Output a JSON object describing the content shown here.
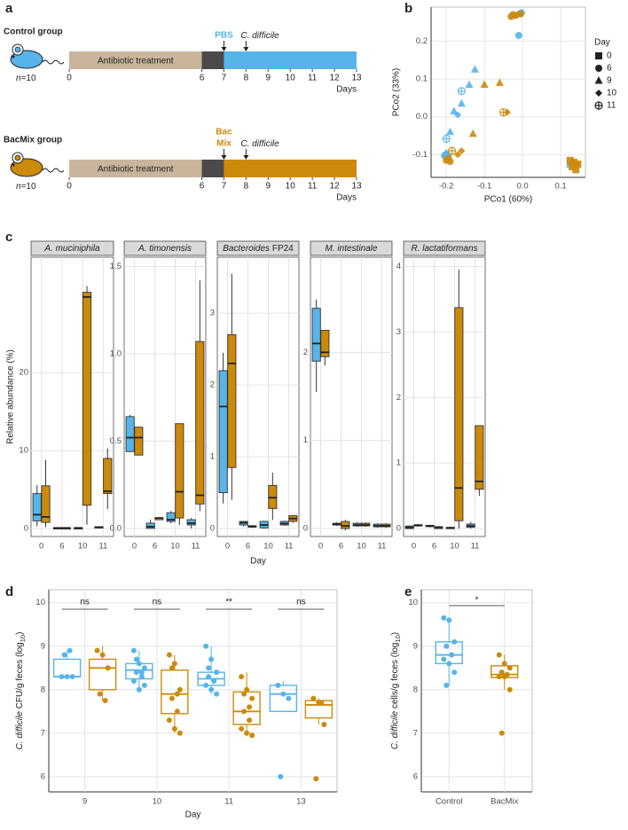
{
  "panel_labels": [
    "a",
    "b",
    "c",
    "d",
    "e"
  ],
  "timeline": {
    "xlim": [
      0,
      13
    ],
    "ticks": [
      0,
      6,
      7,
      8,
      9,
      10,
      11,
      12,
      13
    ],
    "xlabel": "Days",
    "segments": [
      {
        "start": 0,
        "end": 6,
        "color": "#c9b59b",
        "label": "Antibiotic treatment"
      },
      {
        "start": 6,
        "end": 7,
        "color": "#4a4a4a"
      },
      {
        "start": 7,
        "end": 13
      }
    ],
    "arrows": [
      7,
      8
    ],
    "challenge": [
      {
        "text": "C. difficile",
        "italic": true
      }
    ],
    "groups": [
      {
        "title": "Control group",
        "color": "#56b4e9",
        "n": [
          {
            "text": "n",
            "italic": true
          },
          {
            "text": "=10"
          }
        ],
        "agent": [
          "PBS"
        ]
      },
      {
        "title": "BacMix group",
        "color": "#cc8a0a",
        "n": [
          {
            "text": "n",
            "italic": true
          },
          {
            "text": "=10"
          }
        ],
        "agent": [
          "Bac",
          "Mix"
        ]
      }
    ]
  },
  "chart_data": [
    {
      "type": "scatter",
      "xlabel": "PCo1 (60%)",
      "ylabel": "PCo2 (33%)",
      "xlim": [
        -0.24,
        0.165
      ],
      "ylim": [
        -0.16,
        0.29
      ],
      "xticks": [
        -0.2,
        -0.1,
        {
          "value": 0,
          "label": "0.0"
        },
        0.1
      ],
      "yticks": [
        -0.1,
        {
          "value": 0,
          "label": "0.0"
        },
        0.1,
        0.2
      ],
      "grid": true,
      "legend": {
        "title": "Day",
        "labels": [
          0,
          6,
          9,
          10,
          11
        ],
        "shapes": [
          "square",
          "circle",
          "triangle",
          "diamond",
          "circle-plus"
        ],
        "position": "right"
      },
      "series": [
        {
          "color": "#56b4e9",
          "x": [
            0.125,
            -0.008,
            -0.003,
            -0.01,
            -0.2,
            -0.195,
            -0.205,
            -0.125,
            -0.14,
            -0.16,
            -0.18,
            -0.19,
            -0.17,
            -0.2,
            -0.16,
            -0.2
          ],
          "y": [
            -0.125,
            0.272,
            0.275,
            0.215,
            -0.1,
            -0.105,
            -0.103,
            0.125,
            0.085,
            0.035,
            0.015,
            -0.04,
            0.005,
            -0.095,
            0.068,
            -0.058
          ],
          "day": [
            0,
            6,
            6,
            6,
            6,
            6,
            6,
            9,
            9,
            9,
            9,
            9,
            10,
            10,
            11,
            11
          ]
        },
        {
          "color": "#cc8a0a",
          "x": [
            0.125,
            0.135,
            0.14,
            0.13,
            0.145,
            0.14,
            -0.025,
            -0.018,
            -0.03,
            -0.005,
            -0.2,
            -0.19,
            -0.195,
            -0.06,
            -0.1,
            -0.13,
            -0.04,
            -0.16,
            -0.17,
            -0.05,
            -0.185
          ],
          "y": [
            -0.115,
            -0.12,
            -0.128,
            -0.132,
            -0.125,
            -0.14,
            0.27,
            0.268,
            0.265,
            0.272,
            -0.115,
            -0.118,
            -0.11,
            0.09,
            0.085,
            -0.045,
            0.012,
            -0.09,
            -0.1,
            0.012,
            -0.09
          ],
          "day": [
            0,
            0,
            0,
            0,
            0,
            0,
            6,
            6,
            6,
            6,
            6,
            6,
            6,
            9,
            9,
            9,
            10,
            10,
            10,
            11,
            11
          ]
        }
      ]
    },
    {
      "type": "facet-box",
      "ylabel": "Relative abundance (%)",
      "xlabel": "Day",
      "categories": [
        "0",
        "6",
        "10",
        "11"
      ],
      "colors": [
        "#56b4e9",
        "#cc8a0a"
      ],
      "grid": true,
      "facets": [
        {
          "title": [
            {
              "text": "A. muciniphila",
              "italic": true
            }
          ],
          "ylim": [
            -1.0,
            34.8
          ],
          "yticks": [
            0,
            10,
            20
          ],
          "series": [
            [
              {
                "min": 0.3,
                "q1": 1.0,
                "median": 1.8,
                "q3": 4.5,
                "max": 5.6
              },
              {
                "min": 0.05,
                "q1": 0.08,
                "median": 0.1,
                "q3": 0.13,
                "max": 0.15
              },
              {
                "min": 0.05,
                "q1": 0.08,
                "median": 0.1,
                "q3": 0.12,
                "max": 0.15
              },
              {
                "min": 0.1,
                "q1": 0.15,
                "median": 0.2,
                "q3": 0.25,
                "max": 0.3
              }
            ],
            [
              {
                "min": 0.2,
                "q1": 0.8,
                "median": 1.5,
                "q3": 5.5,
                "max": 8.8
              },
              {
                "min": 0.05,
                "q1": 0.07,
                "median": 0.1,
                "q3": 0.12,
                "max": 0.14
              },
              {
                "min": 0.5,
                "q1": 3.0,
                "median": 29.7,
                "q3": 30.3,
                "max": 31.1
              },
              {
                "min": 2.5,
                "q1": 4.5,
                "median": 4.8,
                "q3": 9.0,
                "max": 10.3
              }
            ]
          ]
        },
        {
          "title": [
            {
              "text": "A. timonensis",
              "italic": true
            }
          ],
          "ylim": [
            -0.046,
            1.553
          ],
          "yticks": [
            {
              "value": 0,
              "label": "0.0"
            },
            0.5,
            {
              "value": 1,
              "label": "1.0"
            },
            1.5
          ],
          "series": [
            [
              {
                "min": 0.44,
                "q1": 0.44,
                "median": 0.52,
                "q3": 0.64,
                "max": 0.65
              },
              {
                "min": 0,
                "q1": 0.0,
                "median": 0.01,
                "q3": 0.03,
                "max": 0.05
              },
              {
                "min": 0.03,
                "q1": 0.04,
                "median": 0.05,
                "q3": 0.09,
                "max": 0.1
              },
              {
                "min": 0,
                "q1": 0.02,
                "median": 0.03,
                "q3": 0.05,
                "max": 0.06
              }
            ],
            [
              {
                "min": 0.42,
                "q1": 0.42,
                "median": 0.52,
                "q3": 0.58,
                "max": 0.58
              },
              {
                "min": 0.05,
                "q1": 0.05,
                "median": 0.06,
                "q3": 0.06,
                "max": 0.06
              },
              {
                "min": 0.02,
                "q1": 0.06,
                "median": 0.21,
                "q3": 0.6,
                "max": 0.6
              },
              {
                "min": 0.1,
                "q1": 0.14,
                "median": 0.19,
                "q3": 1.07,
                "max": 1.42
              }
            ]
          ]
        },
        {
          "title": [
            {
              "text": "Bacteroides",
              "italic": true
            },
            {
              "text": " FP24"
            }
          ],
          "ylim": [
            -0.11,
            3.78
          ],
          "yticks": [
            0,
            1,
            2,
            3
          ],
          "series": [
            [
              {
                "min": 0.35,
                "q1": 0.5,
                "median": 1.7,
                "q3": 2.2,
                "max": 2.45
              },
              {
                "min": 0.03,
                "q1": 0.05,
                "median": 0.08,
                "q3": 0.1,
                "max": 0.1
              },
              {
                "min": 0.0,
                "q1": 0.01,
                "median": 0.05,
                "q3": 0.1,
                "max": 0.11
              },
              {
                "min": 0.04,
                "q1": 0.05,
                "median": 0.07,
                "q3": 0.1,
                "max": 0.11
              }
            ],
            [
              {
                "min": 0.4,
                "q1": 0.85,
                "median": 2.3,
                "q3": 2.7,
                "max": 3.55
              },
              {
                "min": 0.01,
                "q1": 0.02,
                "median": 0.03,
                "q3": 0.04,
                "max": 0.05
              },
              {
                "min": 0.12,
                "q1": 0.28,
                "median": 0.43,
                "q3": 0.6,
                "max": 0.78
              },
              {
                "min": 0.08,
                "q1": 0.1,
                "median": 0.14,
                "q3": 0.18,
                "max": 0.19
              }
            ]
          ]
        },
        {
          "title": [
            {
              "text": "M. intestinale",
              "italic": true
            }
          ],
          "ylim": [
            -0.09,
            3.08
          ],
          "yticks": [
            0,
            1,
            2
          ],
          "series": [
            [
              {
                "min": 1.55,
                "q1": 1.9,
                "median": 2.1,
                "q3": 2.5,
                "max": 2.6
              },
              {
                "min": 0.03,
                "q1": 0.04,
                "median": 0.05,
                "q3": 0.06,
                "max": 0.07
              },
              {
                "min": 0.02,
                "q1": 0.03,
                "median": 0.04,
                "q3": 0.06,
                "max": 0.07
              },
              {
                "min": 0.01,
                "q1": 0.02,
                "median": 0.03,
                "q3": 0.05,
                "max": 0.06
              }
            ],
            [
              {
                "min": 1.85,
                "q1": 1.95,
                "median": 2.0,
                "q3": 2.25,
                "max": 2.25
              },
              {
                "min": -0.02,
                "q1": 0.0,
                "median": 0.03,
                "q3": 0.08,
                "max": 0.1
              },
              {
                "min": 0.02,
                "q1": 0.03,
                "median": 0.04,
                "q3": 0.06,
                "max": 0.07
              },
              {
                "min": 0.01,
                "q1": 0.02,
                "median": 0.03,
                "q3": 0.05,
                "max": 0.06
              }
            ]
          ]
        },
        {
          "title": [
            {
              "text": "R. lactatiformans",
              "italic": true
            }
          ],
          "ylim": [
            -0.12,
            4.14
          ],
          "yticks": [
            0,
            1,
            2,
            3,
            4
          ],
          "series": [
            [
              {
                "min": 0,
                "q1": 0.0,
                "median": 0.02,
                "q3": 0.04,
                "max": 0.05
              },
              {
                "min": 0.02,
                "q1": 0.03,
                "median": 0.04,
                "q3": 0.05,
                "max": 0.06
              },
              {
                "min": 0,
                "q1": 0.0,
                "median": 0.01,
                "q3": 0.02,
                "max": 0.03
              },
              {
                "min": 0,
                "q1": 0.02,
                "median": 0.04,
                "q3": 0.07,
                "max": 0.1
              }
            ],
            [
              {
                "min": 0.03,
                "q1": 0.04,
                "median": 0.05,
                "q3": 0.06,
                "max": 0.07
              },
              {
                "min": 0,
                "q1": 0.0,
                "median": 0.02,
                "q3": 0.03,
                "max": 0.04
              },
              {
                "min": 0.0,
                "q1": 0.12,
                "median": 0.62,
                "q3": 3.37,
                "max": 3.95
              },
              {
                "min": 0.5,
                "q1": 0.6,
                "median": 0.72,
                "q3": 1.57,
                "max": 1.57
              }
            ]
          ]
        }
      ]
    },
    {
      "type": "box",
      "ylabel": [
        {
          "text": "C. difficile",
          "italic": true
        },
        {
          "text": " CFU/g feces (log"
        },
        {
          "text": "10",
          "sub": true
        },
        {
          "text": ")"
        }
      ],
      "xlabel": "Day",
      "categories": [
        "9",
        "10",
        "11",
        "13"
      ],
      "ylim": [
        5.65,
        10.3
      ],
      "yticks": [
        6,
        7,
        8,
        9,
        10
      ],
      "grid": true,
      "annotations": [
        "ns",
        "ns",
        "**",
        "ns"
      ],
      "series": [
        {
          "color": "#56b4e9",
          "boxes": [
            {
              "min": 8.3,
              "q1": 8.3,
              "median": 8.3,
              "q3": 8.7,
              "max": 8.9
            },
            {
              "min": 8.0,
              "q1": 8.25,
              "median": 8.45,
              "q3": 8.6,
              "max": 8.9
            },
            {
              "min": 7.9,
              "q1": 8.1,
              "median": 8.25,
              "q3": 8.4,
              "max": 9.0
            },
            {
              "min": 7.5,
              "q1": 7.5,
              "median": 7.9,
              "q3": 8.1,
              "max": 8.2
            }
          ],
          "points": [
            [
              8.3,
              8.3,
              8.3,
              8.8,
              8.9
            ],
            [
              8.9,
              8.6,
              8.5,
              8.4,
              8.3,
              8.2,
              8.0,
              8.1,
              8.7,
              8.4
            ],
            [
              9.0,
              8.7,
              8.4,
              8.3,
              8.2,
              8.1,
              8.0,
              7.9,
              8.5,
              8.2
            ],
            [
              8.1,
              7.9,
              7.8,
              6.0
            ]
          ]
        },
        {
          "color": "#cc8a0a",
          "boxes": [
            {
              "min": 7.75,
              "q1": 8.0,
              "median": 8.5,
              "q3": 8.7,
              "max": 9.0
            },
            {
              "min": 7.0,
              "q1": 7.45,
              "median": 7.9,
              "q3": 8.45,
              "max": 8.8
            },
            {
              "min": 6.95,
              "q1": 7.2,
              "median": 7.5,
              "q3": 7.95,
              "max": 8.4
            },
            {
              "min": 7.2,
              "q1": 7.35,
              "median": 7.65,
              "q3": 7.75,
              "max": 7.8
            }
          ],
          "points": [
            [
              8.9,
              8.8,
              8.5,
              7.9,
              7.75
            ],
            [
              8.8,
              8.6,
              8.0,
              7.8,
              7.5,
              7.3,
              7.1,
              7.0,
              8.5,
              7.9
            ],
            [
              8.3,
              8.0,
              7.8,
              7.5,
              7.3,
              7.1,
              7.0,
              6.95,
              7.9,
              7.6
            ],
            [
              7.8,
              7.7,
              7.2,
              5.95,
              7.7
            ]
          ]
        }
      ]
    },
    {
      "type": "box",
      "ylabel": [
        {
          "text": "C. difficile",
          "italic": true
        },
        {
          "text": " cells/g feces (log"
        },
        {
          "text": "10",
          "sub": true
        },
        {
          "text": ")"
        }
      ],
      "categories": [
        "Control",
        "BacMix"
      ],
      "colors": [
        "#56b4e9",
        "#cc8a0a"
      ],
      "ylim": [
        5.65,
        10.3
      ],
      "yticks": [
        6,
        7,
        8,
        9,
        10
      ],
      "grid": true,
      "annotations": [
        "*"
      ],
      "boxes": [
        {
          "min": 8.1,
          "q1": 8.6,
          "median": 8.8,
          "q3": 9.1,
          "max": 9.65
        },
        {
          "min": 8.0,
          "q1": 8.28,
          "median": 8.35,
          "q3": 8.55,
          "max": 8.8
        }
      ],
      "points": [
        [
          9.65,
          9.6,
          9.1,
          9.0,
          8.8,
          8.7,
          8.6,
          8.4,
          8.1
        ],
        [
          8.8,
          8.6,
          8.5,
          8.4,
          8.35,
          8.3,
          8.3,
          8.0,
          7.0
        ]
      ]
    }
  ]
}
